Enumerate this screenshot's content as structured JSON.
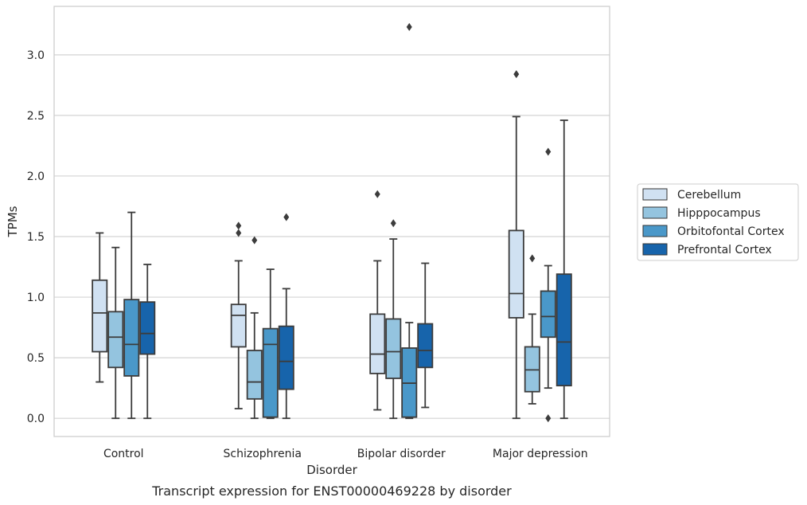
{
  "chart_data": {
    "type": "box",
    "xlabel": "Disorder",
    "ylabel": "TPMs",
    "caption": "Transcript expression for ENST00000469228 by disorder",
    "categories": [
      "Control",
      "Schizophrenia",
      "Bipolar disorder",
      "Major depression"
    ],
    "ylim": [
      -0.15,
      3.4
    ],
    "yticks": [
      0.0,
      0.5,
      1.0,
      1.5,
      2.0,
      2.5,
      3.0
    ],
    "ytick_labels": [
      "0.0",
      "0.5",
      "1.0",
      "1.5",
      "2.0",
      "2.5",
      "3.0"
    ],
    "grid": "horizontal",
    "legend_placement": "right-center",
    "series": [
      {
        "name": "Cerebellum",
        "color": "#d0e1f2",
        "boxes": [
          {
            "whislo": 0.3,
            "q1": 0.55,
            "med": 0.87,
            "q3": 1.14,
            "whishi": 1.53,
            "fliers": []
          },
          {
            "whislo": 0.08,
            "q1": 0.59,
            "med": 0.85,
            "q3": 0.94,
            "whishi": 1.3,
            "fliers": [
              1.53,
              1.59
            ]
          },
          {
            "whislo": 0.07,
            "q1": 0.37,
            "med": 0.53,
            "q3": 0.86,
            "whishi": 1.3,
            "fliers": [
              1.85
            ]
          },
          {
            "whislo": 0.0,
            "q1": 0.83,
            "med": 1.03,
            "q3": 1.55,
            "whishi": 2.49,
            "fliers": [
              2.84
            ]
          }
        ]
      },
      {
        "name": "Hipppocampus",
        "color": "#94c4df",
        "boxes": [
          {
            "whislo": 0.0,
            "q1": 0.42,
            "med": 0.67,
            "q3": 0.88,
            "whishi": 1.41,
            "fliers": []
          },
          {
            "whislo": 0.0,
            "q1": 0.16,
            "med": 0.3,
            "q3": 0.56,
            "whishi": 0.87,
            "fliers": [
              1.47
            ]
          },
          {
            "whislo": 0.0,
            "q1": 0.33,
            "med": 0.55,
            "q3": 0.82,
            "whishi": 1.48,
            "fliers": [
              1.61
            ]
          },
          {
            "whislo": 0.12,
            "q1": 0.22,
            "med": 0.4,
            "q3": 0.59,
            "whishi": 0.86,
            "fliers": [
              1.32
            ]
          }
        ]
      },
      {
        "name": "Orbitofontal Cortex",
        "color": "#4a98c9",
        "boxes": [
          {
            "whislo": 0.0,
            "q1": 0.35,
            "med": 0.61,
            "q3": 0.98,
            "whishi": 1.7,
            "fliers": []
          },
          {
            "whislo": 0.0,
            "q1": 0.01,
            "med": 0.61,
            "q3": 0.74,
            "whishi": 1.23,
            "fliers": []
          },
          {
            "whislo": 0.0,
            "q1": 0.01,
            "med": 0.29,
            "q3": 0.58,
            "whishi": 0.79,
            "fliers": [
              3.23
            ]
          },
          {
            "whislo": 0.25,
            "q1": 0.67,
            "med": 0.84,
            "q3": 1.05,
            "whishi": 1.26,
            "fliers": [
              2.2,
              0.0
            ]
          }
        ]
      },
      {
        "name": "Prefrontal Cortex",
        "color": "#1764ab",
        "boxes": [
          {
            "whislo": 0.0,
            "q1": 0.53,
            "med": 0.7,
            "q3": 0.96,
            "whishi": 1.27,
            "fliers": []
          },
          {
            "whislo": 0.0,
            "q1": 0.24,
            "med": 0.47,
            "q3": 0.76,
            "whishi": 1.07,
            "fliers": [
              1.66
            ]
          },
          {
            "whislo": 0.09,
            "q1": 0.42,
            "med": 0.56,
            "q3": 0.78,
            "whishi": 1.28,
            "fliers": []
          },
          {
            "whislo": 0.0,
            "q1": 0.27,
            "med": 0.63,
            "q3": 1.19,
            "whishi": 2.46,
            "fliers": []
          }
        ]
      }
    ]
  }
}
